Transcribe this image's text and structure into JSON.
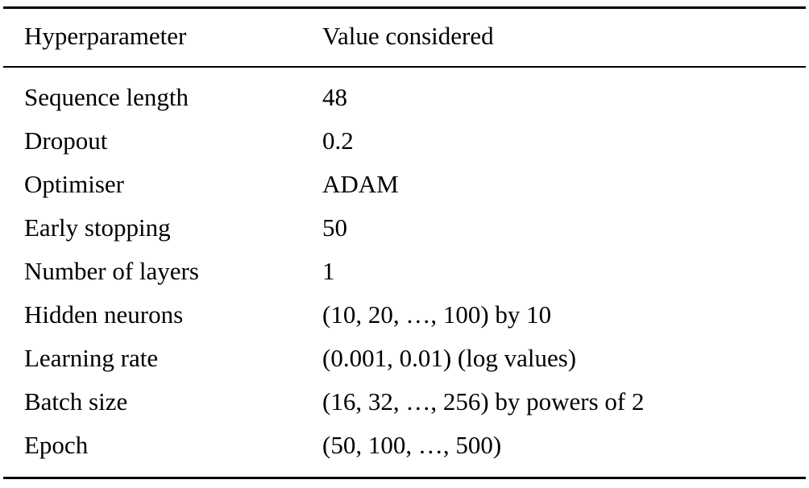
{
  "table": {
    "headers": {
      "param": "Hyperparameter",
      "value": "Value considered"
    },
    "rows": [
      {
        "param": "Sequence length",
        "value": "48"
      },
      {
        "param": "Dropout",
        "value": "0.2"
      },
      {
        "param": "Optimiser",
        "value": "ADAM"
      },
      {
        "param": "Early stopping",
        "value": "50"
      },
      {
        "param": "Number of layers",
        "value": "1"
      },
      {
        "param": "Hidden neurons",
        "value": "(10, 20, …, 100) by 10"
      },
      {
        "param": "Learning rate",
        "value": "(0.001, 0.01) (log values)"
      },
      {
        "param": "Batch size",
        "value": "(16, 32, …, 256) by powers of 2"
      },
      {
        "param": "Epoch",
        "value": "(50, 100, …, 500)"
      }
    ],
    "colors": {
      "text": "#000000",
      "background": "#ffffff",
      "rule": "#000000"
    }
  }
}
